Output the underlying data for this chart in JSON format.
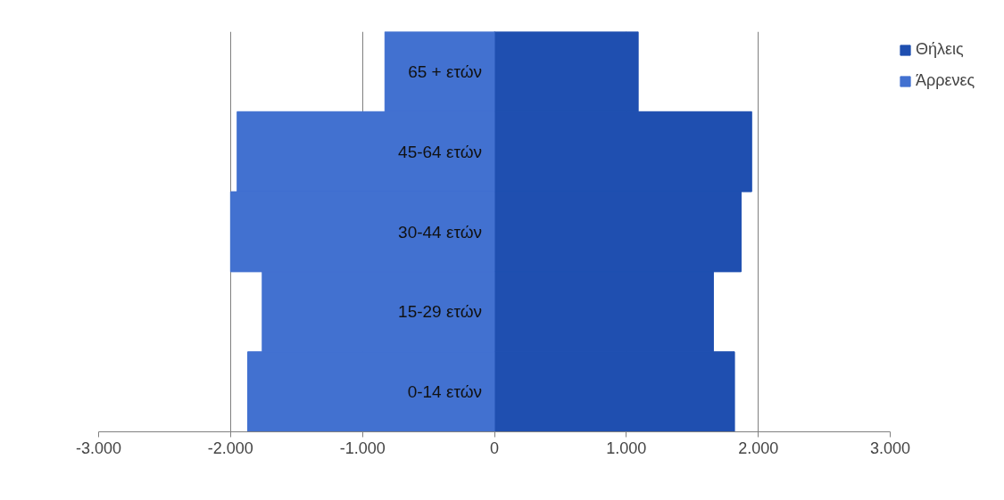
{
  "chart_data": {
    "type": "bar",
    "orientation": "horizontal",
    "stacked": true,
    "categories": [
      "65 + ετών",
      "45-64 ετών",
      "30-44 ετών",
      "15-29 ετών",
      "0-14 ετών"
    ],
    "series": [
      {
        "name": "Θήλεις",
        "color": "#1f4fb0",
        "values": [
          1090,
          1950,
          1870,
          1660,
          1820
        ]
      },
      {
        "name": "Άρρενες",
        "color": "#4271d0",
        "values": [
          -830,
          -1950,
          -2000,
          -1760,
          -1870
        ]
      }
    ],
    "xlim": [
      -3000,
      3000
    ],
    "xticks": [
      {
        "value": -3000,
        "label": "-3.000"
      },
      {
        "value": -2000,
        "label": "-2.000"
      },
      {
        "value": -1000,
        "label": "-1.000"
      },
      0,
      {
        "value": 1000,
        "label": "1.000"
      },
      {
        "value": 2000,
        "label": "2.000"
      },
      {
        "value": 3000,
        "label": "3.000"
      }
    ],
    "grid": "x",
    "legend": "top right"
  }
}
